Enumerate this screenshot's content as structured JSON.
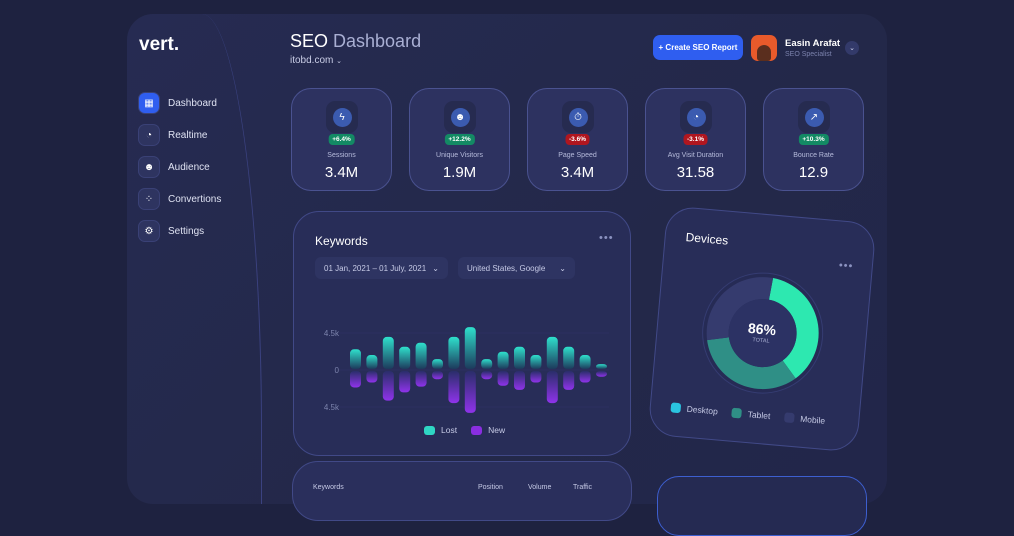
{
  "sidebar": {
    "logo": "vert.",
    "items": [
      {
        "label": "Dashboard",
        "icon": "grid-icon",
        "active": true
      },
      {
        "label": "Realtime",
        "icon": "clock-icon"
      },
      {
        "label": "Audience",
        "icon": "globe-icon"
      },
      {
        "label": "Convertions",
        "icon": "nodes-icon"
      },
      {
        "label": "Settings",
        "icon": "gear-icon"
      }
    ]
  },
  "header": {
    "title_bold": "SEO",
    "title_rest": " Dashboard",
    "domain": "itobd.com",
    "create_button": "+ Create SEO Report",
    "user": {
      "name": "Easin Arafat",
      "role": "SEO Specialist"
    }
  },
  "stats": [
    {
      "label": "Sessions",
      "value": "3.4M",
      "change": "+6.4%",
      "trend": "up",
      "icon": "bolt-icon",
      "glyph": "ϟ"
    },
    {
      "label": "Unique Visitors",
      "value": "1.9M",
      "change": "+12.2%",
      "trend": "up",
      "icon": "globe-icon",
      "glyph": "☻"
    },
    {
      "label": "Page Speed",
      "value": "3.4M",
      "change": "-3.6%",
      "trend": "down",
      "icon": "stopwatch-icon",
      "glyph": "⏱"
    },
    {
      "label": "Avg Visit Duration",
      "value": "31.58",
      "change": "-3.1%",
      "trend": "down",
      "icon": "clock-icon",
      "glyph": "◔"
    },
    {
      "label": "Bounce Rate",
      "value": "12.9",
      "change": "+10.3%",
      "trend": "up",
      "icon": "trend-icon",
      "glyph": "↗"
    }
  ],
  "keywords": {
    "title": "Keywords",
    "date_range": "01 Jan, 2021 – 01 July, 2021",
    "location": "United States, Google"
  },
  "colors": {
    "lost": "#2fd6c4",
    "new": "#8a2ee0",
    "accent": "#2f5ef0",
    "desktop": "#2de8b0",
    "tablet": "#2f8f86",
    "mobile": "#353b6e"
  },
  "chart_data": [
    {
      "type": "bar",
      "ytick_labels": [
        "4.5k",
        "0",
        "4.5k"
      ],
      "ylim": [
        -4.5,
        4.5
      ],
      "legend_placement": "bottom",
      "series": [
        {
          "name": "Lost",
          "values": [
            2.4,
            1.7,
            3.9,
            2.7,
            3.2,
            1.2,
            3.9,
            5.1,
            1.2,
            2.1,
            2.7,
            1.7,
            3.9,
            2.7,
            1.7,
            0.6
          ]
        },
        {
          "name": "New",
          "values": [
            2.0,
            1.4,
            3.6,
            2.6,
            1.9,
            1.0,
            3.9,
            5.1,
            1.0,
            1.8,
            2.3,
            1.4,
            3.9,
            2.3,
            1.4,
            0.7
          ]
        }
      ]
    },
    {
      "type": "pie",
      "title": "Devices",
      "center_value": "86%",
      "center_label": "TOTAL",
      "legend_placement": "bottom",
      "slices": [
        {
          "name": "Desktop",
          "value": 37
        },
        {
          "name": "Tablet",
          "value": 33
        },
        {
          "name": "Mobile",
          "value": 30
        }
      ]
    }
  ],
  "table": {
    "headers": [
      "Keywords",
      "Position",
      "Volume",
      "Traffic"
    ]
  }
}
